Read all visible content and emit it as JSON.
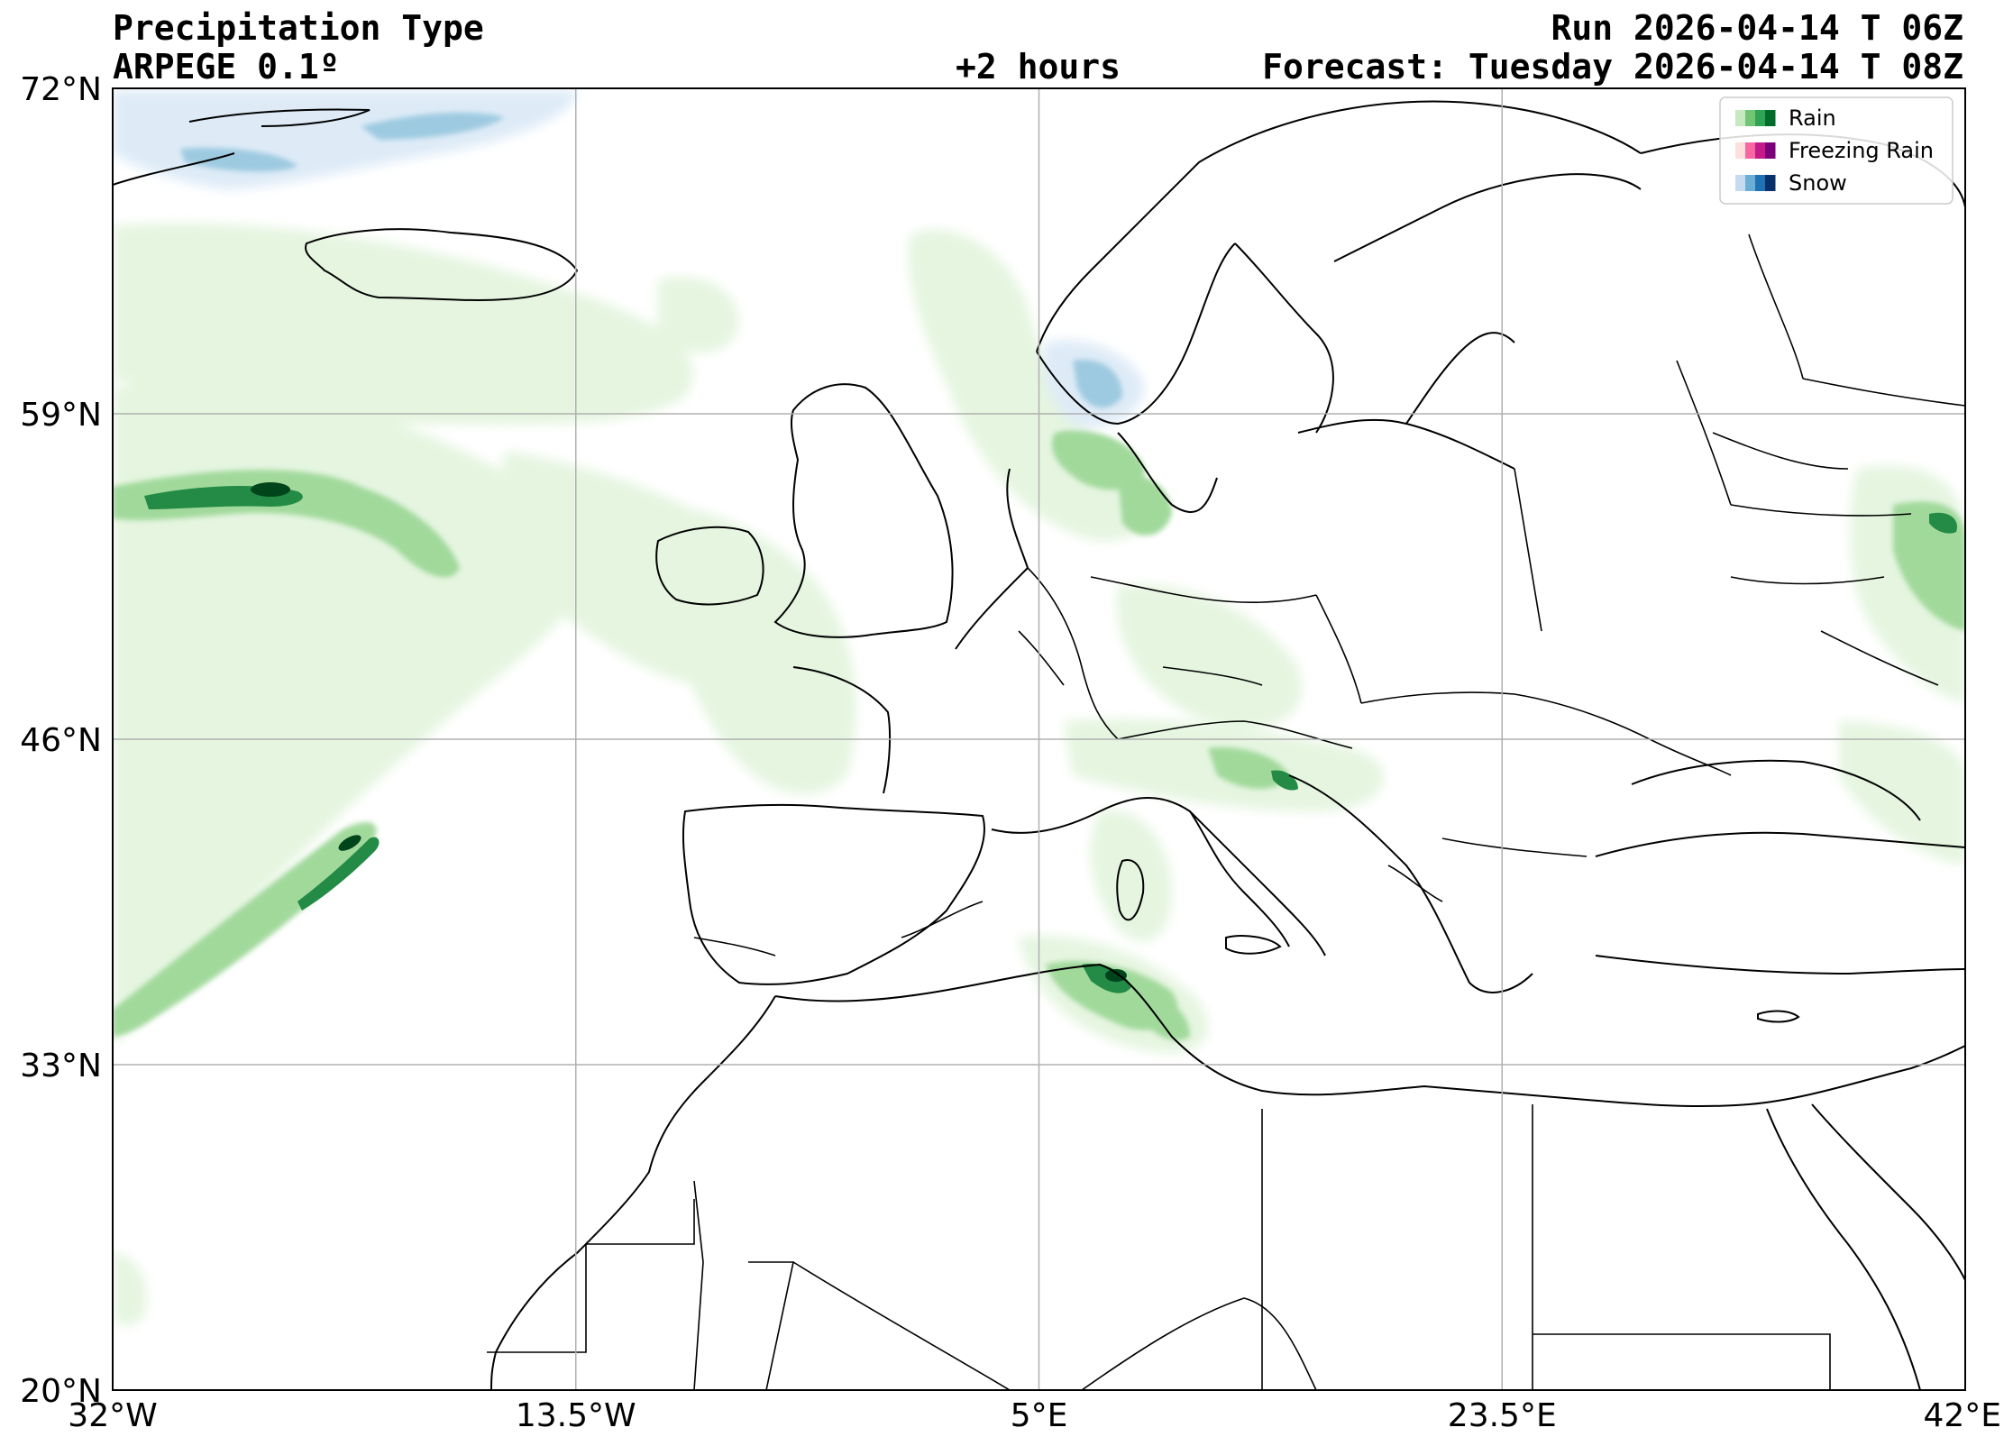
{
  "header": {
    "title": "Precipitation Type",
    "model": "ARPEGE 0.1º",
    "lead": "+2 hours",
    "run": "Run 2026-04-14 T 06Z",
    "forecast": "Forecast: Tuesday 2026-04-14 T 08Z"
  },
  "axes": {
    "lat_ticks": [
      "72°N",
      "59°N",
      "46°N",
      "33°N",
      "20°N"
    ],
    "lon_ticks": [
      "32°W",
      "13.5°W",
      "5°E",
      "23.5°E",
      "42°E"
    ],
    "lat_range": [
      20,
      72
    ],
    "lon_range": [
      -32,
      42
    ],
    "grid": true
  },
  "legend": {
    "placement": "top-right",
    "items": [
      {
        "label": "Rain",
        "colors": [
          "#c7e9c0",
          "#74c476",
          "#31a354",
          "#006d2c"
        ]
      },
      {
        "label": "Freezing Rain",
        "colors": [
          "#fde0dd",
          "#f768a1",
          "#c51b8a",
          "#7a0177"
        ]
      },
      {
        "label": "Snow",
        "colors": [
          "#c6dbef",
          "#6baed6",
          "#2171b5",
          "#08306b"
        ]
      }
    ]
  },
  "colors": {
    "rain_light": "#e5f5e0",
    "rain_mid": "#a1d99b",
    "rain_dark": "#238b45",
    "rain_darkest": "#00441b",
    "snow_light": "#deebf7",
    "snow_mid": "#9ecae1",
    "coast": "#000000",
    "grid": "#b0b0b0"
  }
}
